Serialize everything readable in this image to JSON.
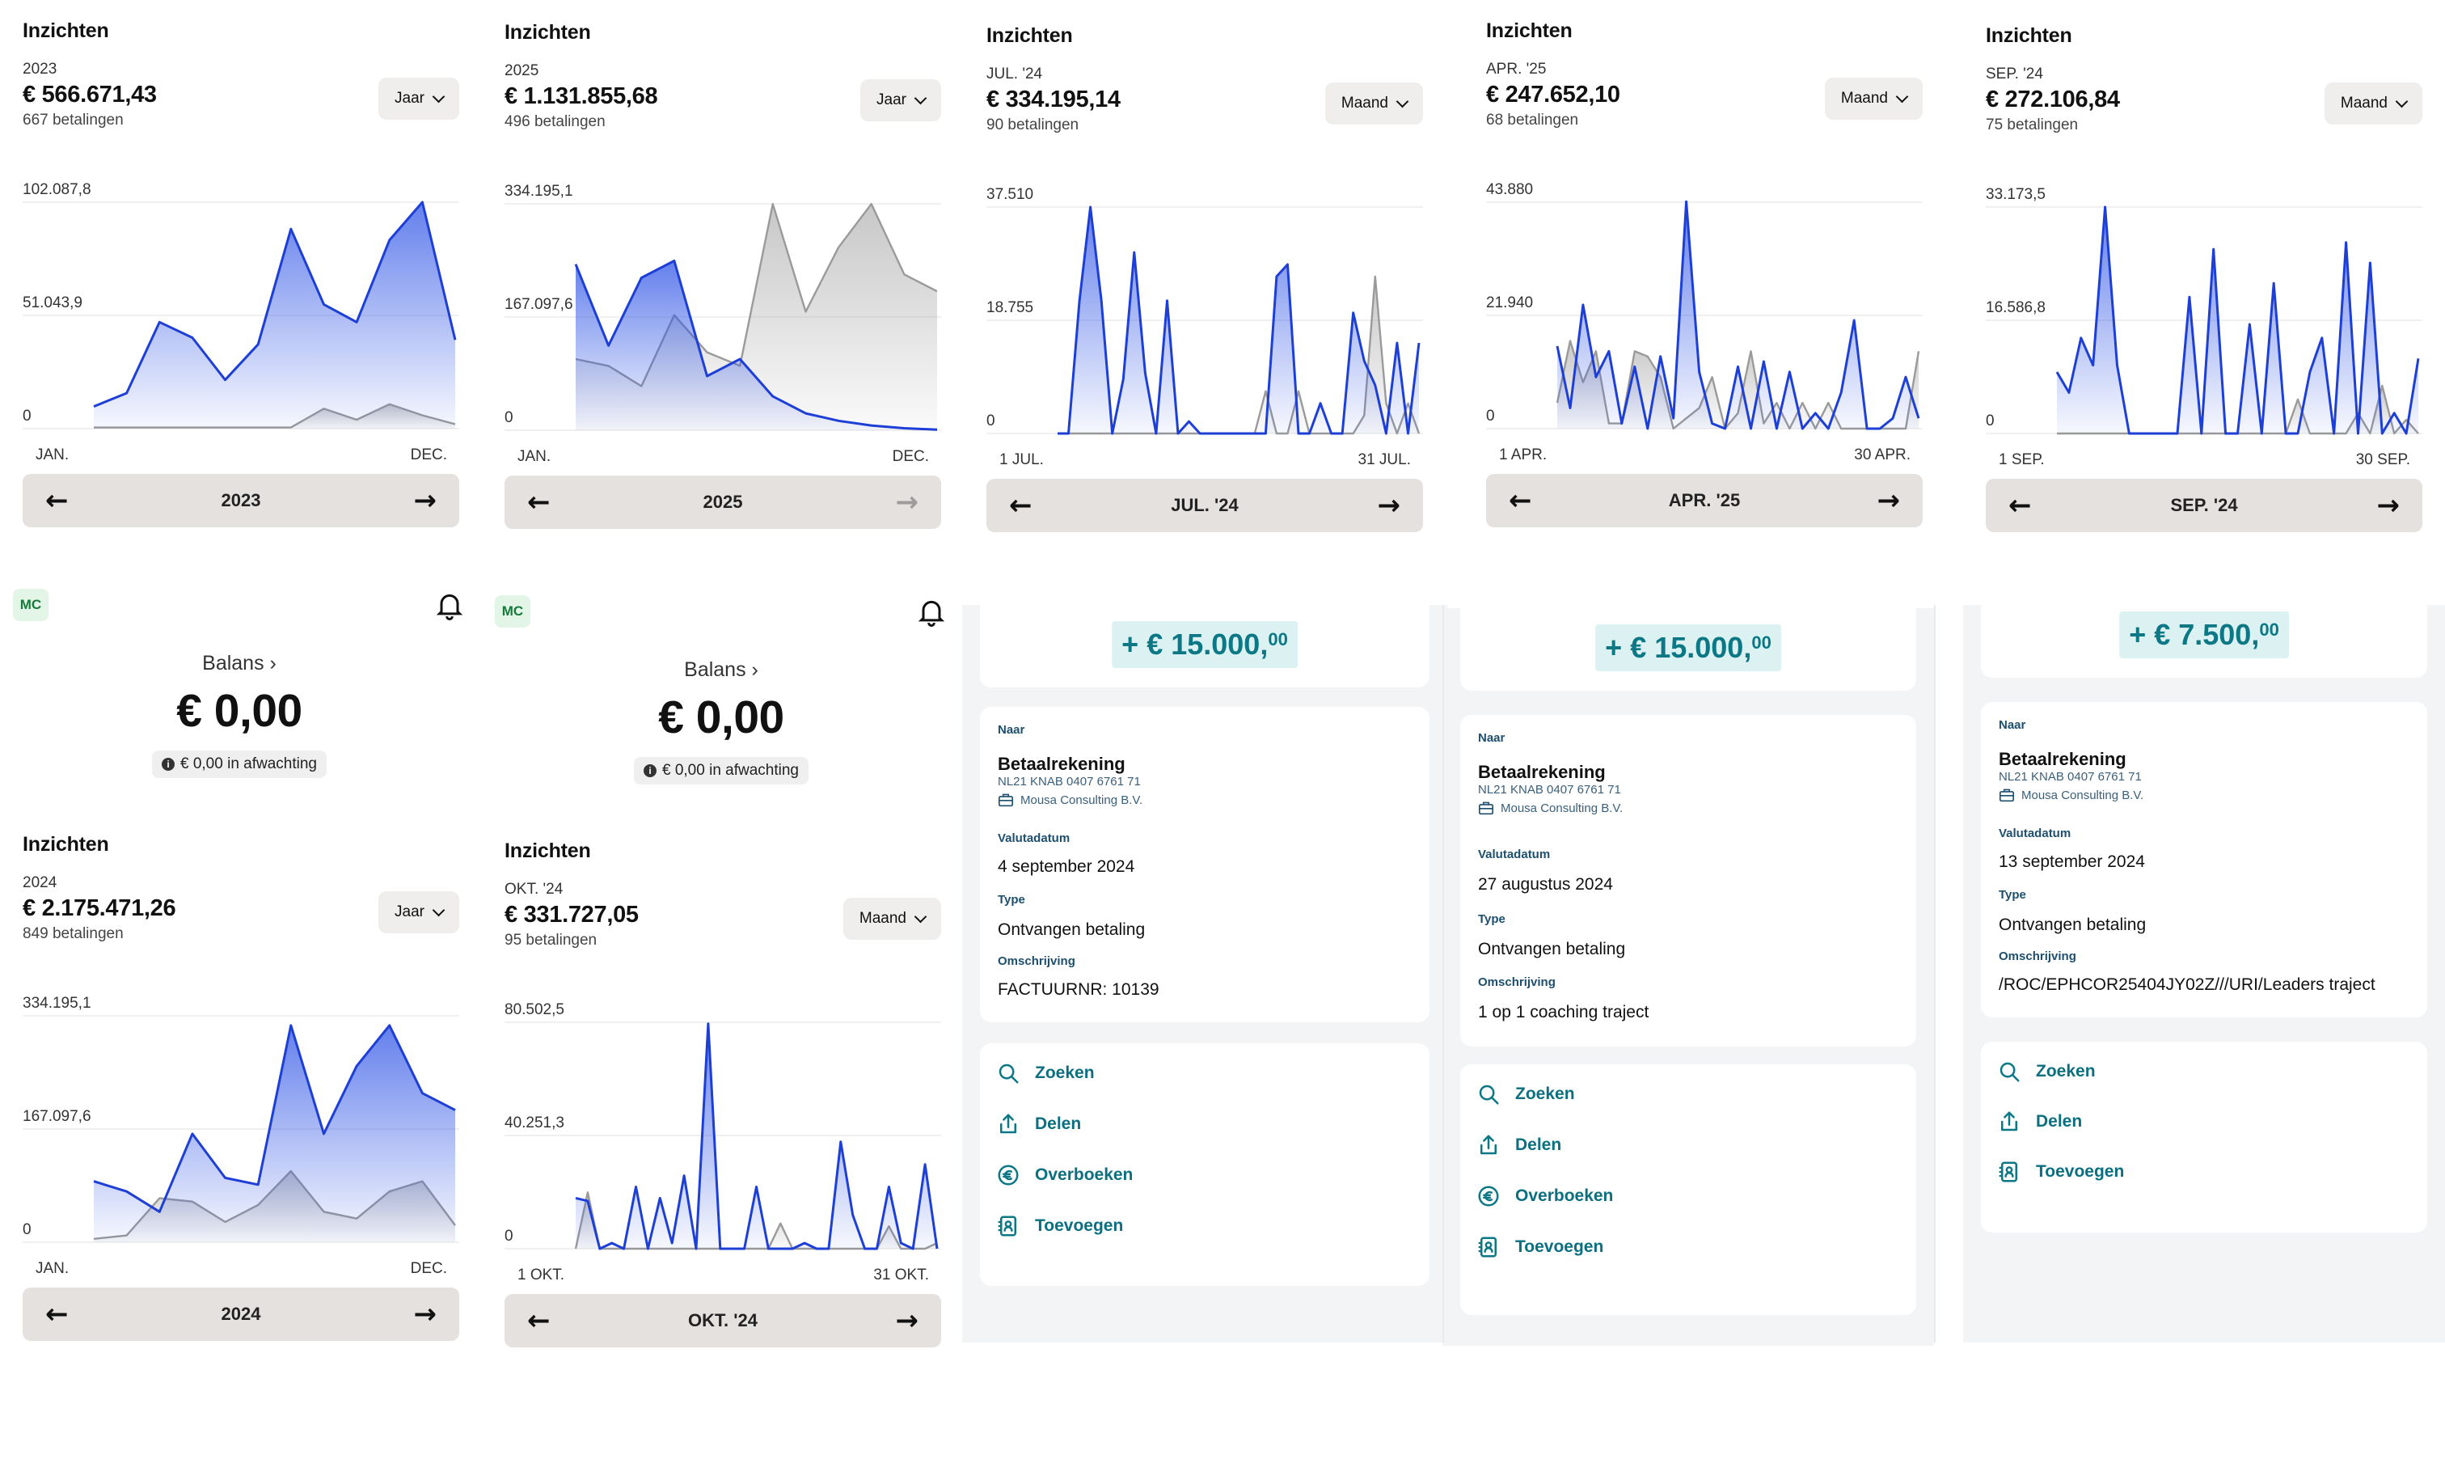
{
  "colors": {
    "accent": "#1e3fd6",
    "compare": "#9a9a9a",
    "teal": "#0c7785"
  },
  "insights": [
    {
      "title": "Inzichten",
      "period": "2023",
      "amount": "€ 566.671,43",
      "count": "667 betalingen",
      "dropdown": "Jaar",
      "y_max": "102.087,8",
      "y_mid": "51.043,9",
      "y_min": "0",
      "x_start": "JAN.",
      "x_end": "DEC.",
      "nav": "2023",
      "next_disabled": false,
      "chart_data": {
        "type": "area",
        "ylim": [
          0,
          102087.8
        ],
        "series": [
          {
            "values": [
              10000,
              16000,
              48000,
              41000,
              22000,
              38000,
              90000,
              56000,
              48000,
              85000,
              102087,
              40000
            ]
          },
          {
            "values": [
              500,
              500,
              500,
              500,
              500,
              500,
              500,
              9000,
              4000,
              11000,
              6000,
              2000
            ]
          }
        ]
      }
    },
    {
      "title": "Inzichten",
      "period": "2025",
      "amount": "€ 1.131.855,68",
      "count": "496 betalingen",
      "dropdown": "Jaar",
      "y_max": "334.195,1",
      "y_mid": "167.097,6",
      "y_min": "0",
      "x_start": "JAN.",
      "x_end": "DEC.",
      "nav": "2025",
      "next_disabled": true,
      "chart_data": {
        "type": "area",
        "ylim": [
          0,
          334195.1
        ],
        "series": [
          {
            "values": [
              245000,
              125000,
              225000,
              250000,
              80000,
              105000,
              50000,
              25000,
              14000,
              7000,
              3000,
              1000
            ]
          },
          {
            "values": [
              105000,
              95000,
              65000,
              170000,
              115000,
              95000,
              334000,
              175000,
              270000,
              334000,
              230000,
              205000
            ]
          }
        ]
      }
    },
    {
      "title": "Inzichten",
      "period": "JUL. '24",
      "amount": "€ 334.195,14",
      "count": "90 betalingen",
      "dropdown": "Maand",
      "y_max": "37.510",
      "y_mid": "18.755",
      "y_min": "0",
      "x_start": "1 JUL.",
      "x_end": "31 JUL.",
      "nav": "JUL. '24",
      "next_disabled": false,
      "chart_data": {
        "type": "area",
        "ylim": [
          0,
          37510
        ],
        "series": [
          {
            "values": [
              0,
              0,
              22000,
              37510,
              22000,
              0,
              9000,
              30000,
              10000,
              0,
              22000,
              0,
              2000,
              0,
              0,
              0,
              0,
              0,
              0,
              0,
              26000,
              28000,
              0,
              0,
              5000,
              0,
              0,
              20000,
              12000,
              8000,
              0,
              15000,
              0,
              15000
            ]
          },
          {
            "values": [
              0,
              0,
              0,
              0,
              0,
              0,
              0,
              0,
              0,
              0,
              0,
              0,
              0,
              0,
              0,
              0,
              0,
              0,
              0,
              7000,
              0,
              0,
              7000,
              0,
              0,
              0,
              0,
              0,
              3000,
              26000,
              5000,
              0,
              5000,
              0
            ]
          }
        ]
      }
    },
    {
      "title": "Inzichten",
      "period": "APR. '25",
      "amount": "€ 247.652,10",
      "count": "68 betalingen",
      "dropdown": "Maand",
      "y_max": "43.880",
      "y_mid": "21.940",
      "y_min": "0",
      "x_start": "1 APR.",
      "x_end": "30 APR.",
      "nav": "APR. '25",
      "next_disabled": false,
      "chart_data": {
        "type": "area",
        "ylim": [
          0,
          43880
        ],
        "series": [
          {
            "values": [
              16000,
              4000,
              24000,
              10000,
              15000,
              1000,
              12000,
              0,
              14000,
              2000,
              44000,
              11000,
              1000,
              0,
              12000,
              0,
              13000,
              0,
              11000,
              0,
              3000,
              0,
              7000,
              21000,
              0,
              0,
              2000,
              10000,
              2000
            ]
          },
          {
            "values": [
              5000,
              17000,
              9000,
              15000,
              1000,
              1000,
              15000,
              14000,
              10000,
              0,
              2000,
              4000,
              10000,
              0,
              3000,
              15000,
              1000,
              5000,
              0,
              5000,
              0,
              5000,
              0,
              0,
              0,
              0,
              0,
              0,
              15000
            ]
          }
        ]
      }
    },
    {
      "title": "Inzichten",
      "period": "SEP. '24",
      "amount": "€ 272.106,84",
      "count": "75 betalingen",
      "dropdown": "Maand",
      "y_max": "33.173,5",
      "y_mid": "16.586,8",
      "y_min": "0",
      "x_start": "1 SEP.",
      "x_end": "30 SEP.",
      "nav": "SEP. '24",
      "next_disabled": false,
      "chart_data": {
        "type": "area",
        "ylim": [
          0,
          33173.5
        ],
        "series": [
          {
            "values": [
              9000,
              6000,
              14000,
              10000,
              33173,
              10000,
              0,
              0,
              0,
              0,
              0,
              20000,
              0,
              27000,
              0,
              0,
              16000,
              0,
              22000,
              0,
              0,
              9000,
              14000,
              0,
              28000,
              0,
              25000,
              0,
              3000,
              0,
              11000
            ]
          },
          {
            "values": [
              0,
              0,
              0,
              0,
              0,
              0,
              0,
              0,
              0,
              0,
              0,
              0,
              0,
              0,
              0,
              0,
              0,
              0,
              0,
              0,
              5000,
              0,
              0,
              0,
              0,
              3000,
              0,
              7000,
              0,
              2000,
              0
            ]
          }
        ]
      }
    },
    {
      "title": "Inzichten",
      "period": "2024",
      "amount": "€ 2.175.471,26",
      "count": "849 betalingen",
      "dropdown": "Jaar",
      "y_max": "334.195,1",
      "y_mid": "167.097,6",
      "y_min": "0",
      "x_start": "JAN.",
      "x_end": "DEC.",
      "nav": "2024",
      "next_disabled": false,
      "chart_data": {
        "type": "area",
        "ylim": [
          0,
          334195.1
        ],
        "series": [
          {
            "values": [
              90000,
              75000,
              45000,
              160000,
              95000,
              85000,
              320000,
              160000,
              260000,
              320000,
              220000,
              195000
            ]
          },
          {
            "values": [
              5000,
              10000,
              65000,
              60000,
              30000,
              55000,
              105000,
              45000,
              35000,
              75000,
              90000,
              25000
            ]
          }
        ]
      }
    },
    {
      "title": "Inzichten",
      "period": "OKT. '24",
      "amount": "€ 331.727,05",
      "count": "95 betalingen",
      "dropdown": "Maand",
      "y_max": "80.502,5",
      "y_mid": "40.251,3",
      "y_min": "0",
      "x_start": "1 OKT.",
      "x_end": "31 OKT.",
      "nav": "OKT. '24",
      "next_disabled": false,
      "chart_data": {
        "type": "area",
        "ylim": [
          0,
          80502.5
        ],
        "series": [
          {
            "values": [
              18000,
              17000,
              0,
              2000,
              0,
              22000,
              0,
              18000,
              2000,
              26000,
              0,
              80000,
              0,
              0,
              0,
              22000,
              0,
              0,
              0,
              2000,
              0,
              0,
              38000,
              12000,
              0,
              0,
              22000,
              2000,
              0,
              30000,
              0
            ]
          },
          {
            "values": [
              0,
              20000,
              0,
              0,
              0,
              0,
              0,
              0,
              0,
              0,
              0,
              0,
              0,
              0,
              0,
              0,
              0,
              9000,
              0,
              0,
              0,
              0,
              0,
              0,
              0,
              0,
              8000,
              0,
              0,
              0,
              2000
            ]
          }
        ]
      }
    }
  ],
  "balances": [
    {
      "initials": "MC",
      "label": "Balans ›",
      "amount": "€ 0,00",
      "pending": "€ 0,00 in afwachting"
    },
    {
      "initials": "MC",
      "label": "Balans ›",
      "amount": "€ 0,00",
      "pending": "€ 0,00 in afwachting"
    }
  ],
  "transactions": [
    {
      "amount": "+ € 15.000,",
      "cents": "00",
      "to_label": "Naar",
      "account": "Betaalrekening",
      "iban": "NL21 KNAB 0407 6761 71",
      "company": "Mousa Consulting B.V.",
      "date_label": "Valutadatum",
      "date": "4 september 2024",
      "type_label": "Type",
      "type": "Ontvangen betaling",
      "desc_label": "Omschrijving",
      "desc": "FACTUURNR: 10139",
      "actions": [
        "Zoeken",
        "Delen",
        "Overboeken",
        "Toevoegen"
      ]
    },
    {
      "amount": "+ € 15.000,",
      "cents": "00",
      "to_label": "Naar",
      "account": "Betaalrekening",
      "iban": "NL21 KNAB 0407 6761 71",
      "company": "Mousa Consulting B.V.",
      "date_label": "Valutadatum",
      "date": "27 augustus 2024",
      "type_label": "Type",
      "type": "Ontvangen betaling",
      "desc_label": "Omschrijving",
      "desc": "1 op 1 coaching traject",
      "actions": [
        "Zoeken",
        "Delen",
        "Overboeken",
        "Toevoegen"
      ]
    },
    {
      "amount": "+ € 7.500,",
      "cents": "00",
      "to_label": "Naar",
      "account": "Betaalrekening",
      "iban": "NL21 KNAB 0407 6761 71",
      "company": "Mousa Consulting B.V.",
      "date_label": "Valutadatum",
      "date": "13 september 2024",
      "type_label": "Type",
      "type": "Ontvangen betaling",
      "desc_label": "Omschrijving",
      "desc": "/ROC/EPHCOR25404JY02Z///URI/Leaders traject",
      "actions": [
        "Zoeken",
        "Delen",
        "Toevoegen"
      ]
    }
  ]
}
